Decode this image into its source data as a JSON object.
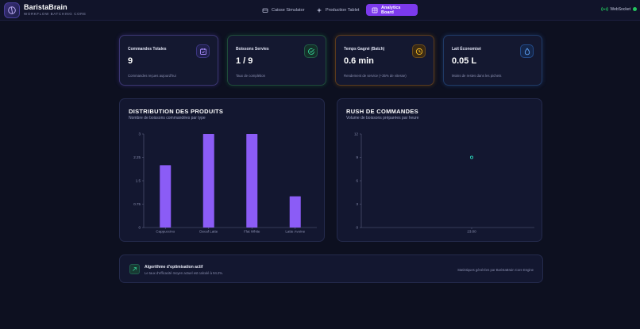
{
  "header": {
    "brand_name": "BaristaBrain",
    "brand_sub": "WORKFLOW BATCHING CORE",
    "nav": [
      {
        "label": "Caisse Simulator",
        "icon": "register-icon",
        "active": false
      },
      {
        "label": "Production Tablet",
        "icon": "sparkle-icon",
        "active": false
      },
      {
        "label": "Analytics Board",
        "icon": "grid-icon",
        "active": true
      }
    ],
    "ws_label": "WebSocket",
    "ws_status_color": "#22c55e"
  },
  "cards": [
    {
      "title": "Commandes Totales",
      "value": "9",
      "sub": "Commandes reçues aujourd'hui",
      "icon": "calendar-check-icon",
      "accent": "#7c5cff"
    },
    {
      "title": "Boissons Servies",
      "value": "1 / 9",
      "sub": "Taux de complétion",
      "icon": "check-circle-icon",
      "accent": "#22c55e"
    },
    {
      "title": "Temps Gagné (Batch)",
      "value": "0.6 min",
      "sub": "Rendement de service (+35% de vitesse)",
      "icon": "clock-icon",
      "accent": "#f59e0b"
    },
    {
      "title": "Lait Économisé",
      "value": "0.05 L",
      "sub": "Moins de restes dans les pichets",
      "icon": "droplet-icon",
      "accent": "#3b82f6"
    }
  ],
  "panels": {
    "distribution": {
      "title": "DISTRIBUTION DES PRODUITS",
      "sub": "Nombre de boissons commandées par type"
    },
    "rush": {
      "title": "RUSH DE COMMANDES",
      "sub": "Volume de boissons préparées par heure"
    }
  },
  "chart_data": [
    {
      "type": "bar",
      "categories": [
        "Cappuccino",
        "Decaf Latte",
        "Flat White",
        "Latte Avoine"
      ],
      "values": [
        2,
        3,
        3,
        1
      ],
      "ylim": [
        0,
        3
      ],
      "yticks": [
        "0",
        "0.75",
        "1.5",
        "2.25",
        "3"
      ],
      "color": "#8b5cf6"
    },
    {
      "type": "scatter",
      "x": [
        "23:00"
      ],
      "values": [
        9
      ],
      "ylim": [
        0,
        12
      ],
      "yticks": [
        "0",
        "3",
        "6",
        "9",
        "12"
      ],
      "color": "#2dd4bf"
    }
  ],
  "footer": {
    "title": "Algorithme d'optimisation actif",
    "sub": "Le taux d'efficacité moyen actuel est calculé à 94.2%.",
    "right": "Statistiques générées par BaristaBrain Core Engine"
  }
}
